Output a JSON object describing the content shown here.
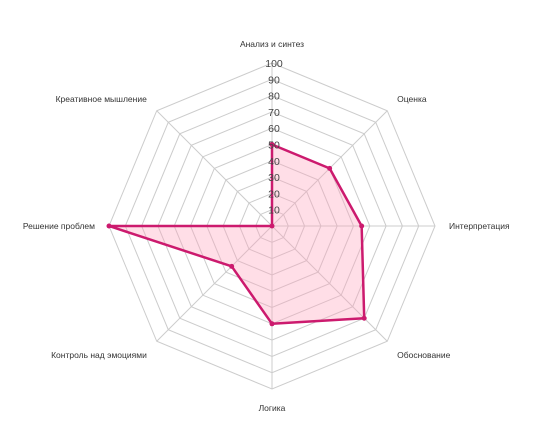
{
  "chart_data": {
    "type": "radar",
    "axes": [
      "Анализ и синтез",
      "Оценка",
      "Интерпретация",
      "Обоснование",
      "Логика",
      "Контроль над эмоциями",
      "Решение проблем",
      "Креативное мышление"
    ],
    "series": [
      {
        "values": [
          50,
          50,
          55,
          80,
          60,
          35,
          100,
          0
        ]
      }
    ],
    "r_ticks": [
      10,
      20,
      30,
      40,
      50,
      60,
      70,
      80,
      90,
      100
    ],
    "r_range": [
      0,
      100
    ],
    "grid": true,
    "colors": {
      "line": "#cc1a6e",
      "fill": "rgba(255, 160, 185, 0.35)",
      "grid": "#cccccc"
    }
  }
}
